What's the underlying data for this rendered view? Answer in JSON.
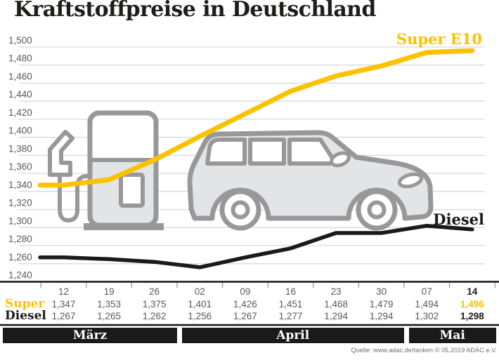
{
  "page": {
    "title": "Kraftstoffpreise in Deutschland",
    "source": "Quelle: www.adac.de/tanken    © 05.2019   ADAC e.V."
  },
  "chart_data": {
    "type": "line",
    "title": "Kraftstoffpreise in Deutschland",
    "categories": [
      "12",
      "19",
      "26",
      "02",
      "09",
      "16",
      "23",
      "30",
      "07",
      "14"
    ],
    "month_groups": [
      {
        "label": "März",
        "cols": 3
      },
      {
        "label": "April",
        "cols": 5
      },
      {
        "label": "Mai",
        "cols": 2
      }
    ],
    "series": [
      {
        "name": "Super E10",
        "color": "#FCC200",
        "values": [
          1.347,
          1.353,
          1.375,
          1.401,
          1.426,
          1.451,
          1.468,
          1.479,
          1.494,
          1.496
        ]
      },
      {
        "name": "Diesel",
        "color": "#1a1a1a",
        "values": [
          1.267,
          1.265,
          1.262,
          1.256,
          1.267,
          1.277,
          1.294,
          1.294,
          1.302,
          1.298
        ]
      }
    ],
    "ylim": [
      1.24,
      1.5
    ],
    "ytick_step": 0.02,
    "ytick_labels": [
      "1,500",
      "1,480",
      "1,460",
      "1,440",
      "1,420",
      "1,400",
      "1,380",
      "1,360",
      "1,340",
      "1,320",
      "1,300",
      "1,280",
      "1,260",
      "1,240"
    ],
    "grid": true,
    "legend_position": "inline-right"
  },
  "table": {
    "dates": [
      "12",
      "19",
      "26",
      "02",
      "09",
      "16",
      "23",
      "30",
      "07",
      "14"
    ],
    "rows": [
      {
        "label": "Super",
        "values": [
          "1,347",
          "1,353",
          "1,375",
          "1,401",
          "1,426",
          "1,451",
          "1,468",
          "1,479",
          "1,494",
          "1,496"
        ]
      },
      {
        "label": "Diesel",
        "values": [
          "1,267",
          "1,265",
          "1,262",
          "1,256",
          "1,267",
          "1,277",
          "1,294",
          "1,294",
          "1,302",
          "1,298"
        ]
      }
    ],
    "months": [
      {
        "label": "März",
        "cols": 3
      },
      {
        "label": "April",
        "cols": 5
      },
      {
        "label": "Mai",
        "cols": 2
      }
    ]
  },
  "colors": {
    "super_yellow": "#FCC200",
    "diesel_black": "#1a1a1a",
    "grid": "#d9d9da",
    "icon_stroke": "#98989a",
    "icon_fill": "#e3e4e5",
    "text_gray": "#58585a",
    "month_bar": "#1a1a1a"
  }
}
